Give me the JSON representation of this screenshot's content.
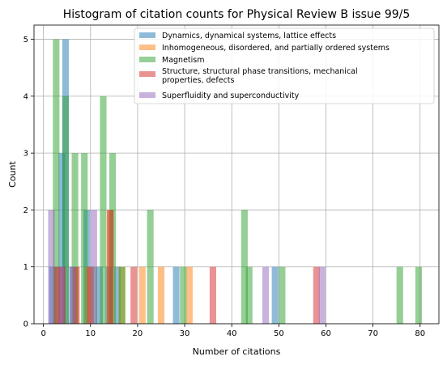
{
  "chart_data": {
    "type": "bar",
    "title": "Histogram of citation counts for Physical Review B issue 99/5",
    "xlabel": "Number of citations",
    "ylabel": "Count",
    "xlim": [
      -2,
      84
    ],
    "ylim": [
      0,
      5.25
    ],
    "xticks": [
      "0",
      "10",
      "20",
      "30",
      "40",
      "50",
      "60",
      "70",
      "80"
    ],
    "yticks": [
      "0",
      "1",
      "2",
      "3",
      "4",
      "5"
    ],
    "grid": true,
    "legend_position": "top-right",
    "bin_width": 2,
    "series": [
      {
        "name": "Dynamics, dynamical systems, lattice effects",
        "color": "#1f77b4",
        "bins": [
          [
            1.2,
            1
          ],
          [
            3.2,
            3
          ],
          [
            4,
            5
          ],
          [
            5.5,
            1
          ],
          [
            8.5,
            2
          ],
          [
            11.2,
            1
          ],
          [
            13.2,
            1
          ],
          [
            15,
            1
          ],
          [
            27.5,
            1
          ],
          [
            48.5,
            1
          ]
        ]
      },
      {
        "name": "Inhomogeneous, disordered, and partially ordered systems",
        "color": "#ff7f0e",
        "bins": [
          [
            2.5,
            1
          ],
          [
            6,
            1
          ],
          [
            8.8,
            1
          ],
          [
            13.5,
            2
          ],
          [
            16,
            1
          ],
          [
            20.3,
            1
          ],
          [
            24.3,
            1
          ],
          [
            30.3,
            1
          ]
        ]
      },
      {
        "name": "Magnetism",
        "color": "#2ca02c",
        "bins": [
          [
            2,
            5
          ],
          [
            4,
            4
          ],
          [
            6,
            3
          ],
          [
            8,
            3
          ],
          [
            10,
            1
          ],
          [
            12,
            4
          ],
          [
            14,
            3
          ],
          [
            16,
            1
          ],
          [
            22,
            2
          ],
          [
            29,
            1
          ],
          [
            42,
            2
          ],
          [
            43,
            1
          ],
          [
            50,
            1
          ],
          [
            75,
            1
          ],
          [
            79,
            1
          ]
        ]
      },
      {
        "name": "Structure, structural phase transitions, mechanical properties, defects",
        "color": "#d62728",
        "bins": [
          [
            2.2,
            1
          ],
          [
            3.3,
            1
          ],
          [
            6.3,
            1
          ],
          [
            9.3,
            1
          ],
          [
            13.5,
            2
          ],
          [
            18.5,
            1
          ],
          [
            35.3,
            1
          ],
          [
            57.3,
            1
          ]
        ]
      },
      {
        "name": "Superfluidity and superconductivity",
        "color": "#9467bd",
        "bins": [
          [
            1,
            2
          ],
          [
            3,
            1
          ],
          [
            5.5,
            1
          ],
          [
            10,
            2
          ],
          [
            46.5,
            1
          ],
          [
            58.5,
            1
          ]
        ]
      }
    ]
  }
}
